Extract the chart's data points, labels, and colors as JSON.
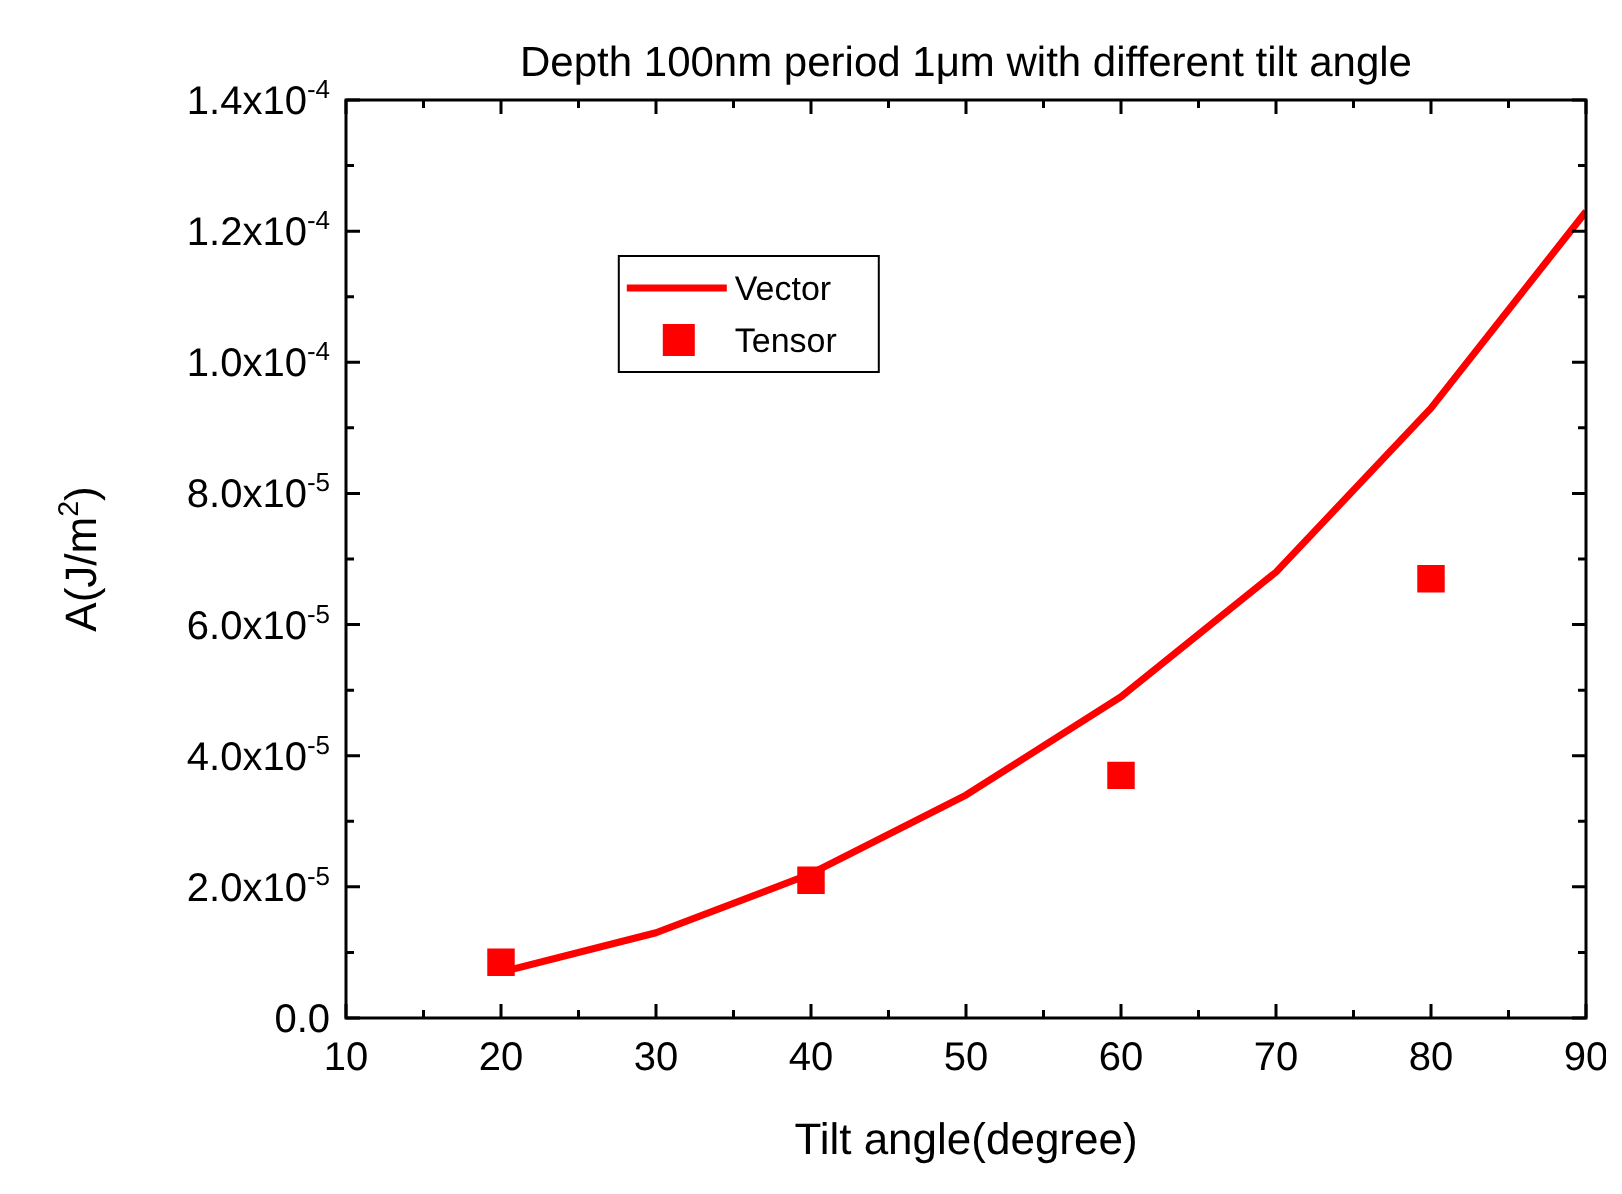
{
  "chart_data": {
    "type": "line",
    "title": "Depth 100nm period 1μm with different tilt angle",
    "xlabel": "Tilt angle(degree)",
    "ylabel": "A(J/m$^{2}$)",
    "x": [
      20,
      30,
      40,
      50,
      60,
      70,
      80,
      90
    ],
    "series": [
      {
        "name": "Vector",
        "color": "#ff0000",
        "marker": "none",
        "values": [
          7e-06,
          1.3e-05,
          2.2e-05,
          3.4e-05,
          4.9e-05,
          6.8e-05,
          9.3e-05,
          0.000123
        ]
      },
      {
        "name": "Tensor",
        "type": "scatter",
        "color": "#ff0000",
        "marker": "square",
        "x": [
          20,
          40,
          60,
          80
        ],
        "values": [
          8.5e-06,
          2.1e-05,
          3.7e-05,
          6.7e-05
        ]
      }
    ],
    "xlim": [
      10,
      90
    ],
    "xticks": [
      10,
      20,
      30,
      40,
      50,
      60,
      70,
      80,
      90
    ],
    "ylim": [
      0,
      0.00014
    ],
    "yticks": [
      {
        "value": 0,
        "label": "0.0"
      },
      {
        "value": 2e-05,
        "label": "2.0x10$^{-5}$"
      },
      {
        "value": 4e-05,
        "label": "4.0x10$^{-5}$"
      },
      {
        "value": 6e-05,
        "label": "6.0x10$^{-5}$"
      },
      {
        "value": 8e-05,
        "label": "8.0x10$^{-5}$"
      },
      {
        "value": 0.0001,
        "label": "1.0x10$^{-4}$"
      },
      {
        "value": 0.00012,
        "label": "1.2x10$^{-4}$"
      },
      {
        "value": 0.00014,
        "label": "1.4x10$^{-4}$"
      }
    ],
    "grid": false,
    "legend": "top left"
  }
}
